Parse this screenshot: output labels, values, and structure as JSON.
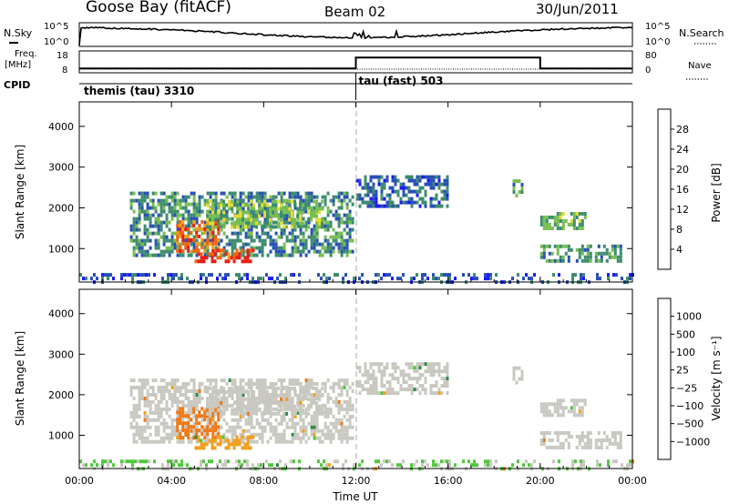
{
  "header": {
    "station": "Goose Bay (fitACF)",
    "beam": "Beam 02",
    "date": "30/Jun/2011"
  },
  "noise_panel": {
    "left_label": "N.Sky",
    "left_ticks": [
      "10^5",
      "10^0"
    ],
    "right_label": "N.Search",
    "right_ticks": [
      "10^5",
      "10^0"
    ]
  },
  "freq_panel": {
    "left_label_line1": "Freq.",
    "left_label_line2": "[MHz]",
    "left_ticks": [
      "18",
      "8"
    ],
    "right_label": "Nave",
    "right_ticks": [
      "80",
      "0"
    ]
  },
  "cpid_panel": {
    "label": "CPID",
    "modes": [
      {
        "name": "themis (tau) 3310",
        "start_hour": 0
      },
      {
        "name": "tau (fast) 503",
        "start_hour": 12
      }
    ]
  },
  "power_panel": {
    "ylabel": "Slant Range [km]",
    "yticks": [
      "1000",
      "2000",
      "3000",
      "4000"
    ],
    "colorbar_label": "Power [dB]",
    "colorbar_ticks": [
      "4",
      "8",
      "12",
      "16",
      "20",
      "24",
      "28"
    ],
    "colors": [
      "#1a1aff",
      "#2850b4",
      "#3c8c6e",
      "#78be50",
      "#e6dc32",
      "#f0a01e",
      "#f06414",
      "#e61e14"
    ]
  },
  "velocity_panel": {
    "ylabel": "Slant Range [km]",
    "yticks": [
      "1000",
      "2000",
      "3000",
      "4000"
    ],
    "colorbar_label": "Velocity [m s⁻¹]",
    "colorbar_ticks": [
      "1000",
      "500",
      "100",
      "25",
      "−25",
      "−100",
      "−500",
      "−1000"
    ],
    "colors": [
      "#1e3cc8",
      "#2a6a9a",
      "#2e8a46",
      "#50c83c",
      "#c8c8c0",
      "#f0a01e",
      "#f07814",
      "#f03c14",
      "#e61414"
    ]
  },
  "time_axis": {
    "label": "Time UT",
    "ticks": [
      "00:00",
      "04:00",
      "08:00",
      "12:00",
      "16:00",
      "20:00",
      "00:00"
    ]
  },
  "chart_data": {
    "type": "heatmap",
    "title": "Goose Bay (fitACF) Beam 02 30/Jun/2011",
    "xlabel": "Time UT",
    "ylabel": "Slant Range [km]",
    "xlim_hours": [
      0,
      24
    ],
    "ylim_km": [
      180,
      4600
    ],
    "power_clim_db": [
      0,
      30
    ],
    "velocity_clim_ms": [
      -1000,
      1000
    ],
    "frequency_mhz": [
      {
        "from_hour": 0,
        "to_hour": 12,
        "value": 10
      },
      {
        "from_hour": 12,
        "to_hour": 20,
        "value": 15
      },
      {
        "from_hour": 20,
        "to_hour": 24,
        "value": 10
      }
    ],
    "scatter_regions": [
      {
        "t_start": 2.2,
        "t_end": 11.9,
        "r_min": 800,
        "r_max": 2400,
        "power_db": 9,
        "velocity_ms": 0
      },
      {
        "t_start": 4.2,
        "t_end": 6.0,
        "r_min": 900,
        "r_max": 1700,
        "power_db": 24,
        "velocity_ms": -150
      },
      {
        "t_start": 5.0,
        "t_end": 7.5,
        "r_min": 700,
        "r_max": 1000,
        "power_db": 26,
        "velocity_ms": -60
      },
      {
        "t_start": 5.5,
        "t_end": 10.5,
        "r_min": 1500,
        "r_max": 2200,
        "power_db": 13,
        "velocity_ms": 0
      },
      {
        "t_start": 12.0,
        "t_end": 16.0,
        "r_min": 2000,
        "r_max": 2800,
        "power_db": 7,
        "velocity_ms": 0
      },
      {
        "t_start": 18.8,
        "t_end": 19.2,
        "r_min": 2300,
        "r_max": 2700,
        "power_db": 10,
        "velocity_ms": 0
      },
      {
        "t_start": 20.0,
        "t_end": 22.0,
        "r_min": 1500,
        "r_max": 1900,
        "power_db": 12,
        "velocity_ms": 0
      },
      {
        "t_start": 20.0,
        "t_end": 23.5,
        "r_min": 700,
        "r_max": 1100,
        "power_db": 10,
        "velocity_ms": 0
      },
      {
        "t_start": 0.0,
        "t_end": 24.0,
        "r_min": 200,
        "r_max": 400,
        "power_db": 6,
        "velocity_ms": 25
      }
    ]
  }
}
